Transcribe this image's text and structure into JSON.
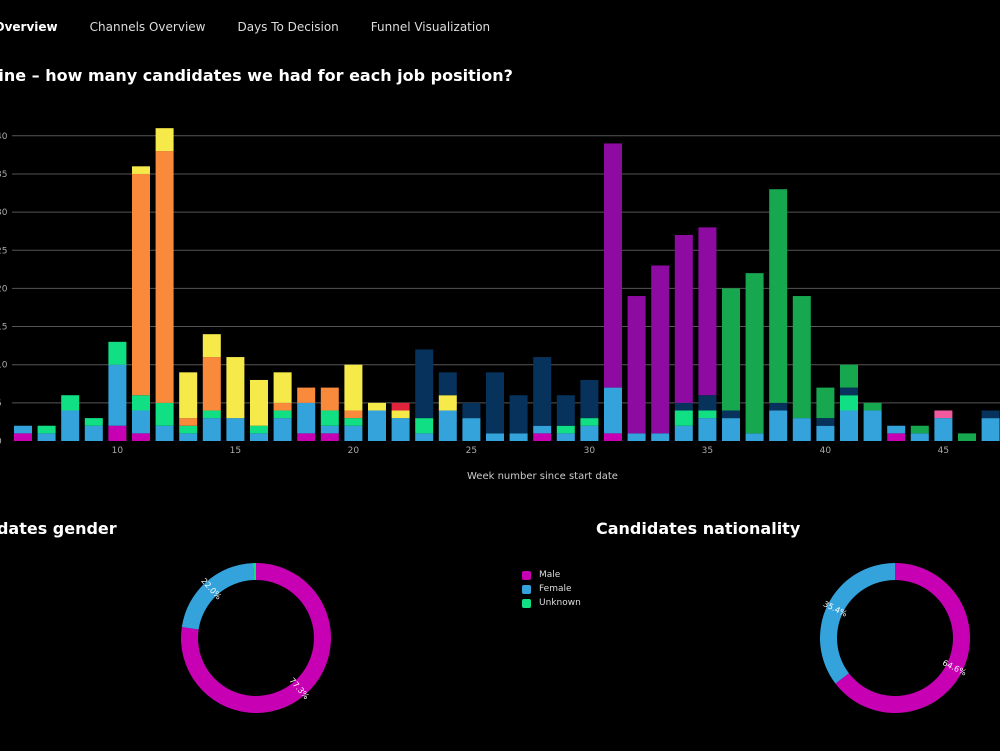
{
  "tabs": [
    {
      "label": "al Overview",
      "active": true
    },
    {
      "label": "Channels Overview",
      "active": false
    },
    {
      "label": "Days To Decision",
      "active": false
    },
    {
      "label": "Funnel Visualization",
      "active": false
    }
  ],
  "titles": {
    "main": "eline – how many candidates we had for each job position?",
    "gender": "didates gender",
    "nationality": "Candidates nationality"
  },
  "colors": {
    "magenta": "#c800b4",
    "blue": "#34a3dc",
    "teal": "#11df83",
    "orange": "#f98a3c",
    "yellow": "#f6ea4b",
    "navy": "#06325c",
    "purple": "#8e0ba2",
    "green": "#17a74e",
    "pink": "#f05ba0",
    "red": "#e0243c"
  },
  "legend": [
    {
      "label": "Male",
      "color": "#c800b4"
    },
    {
      "label": "Female",
      "color": "#34a3dc"
    },
    {
      "label": "Unknown",
      "color": "#11df83"
    }
  ],
  "chart_data": [
    {
      "type": "bar",
      "stacked": true,
      "title": "eline – how many candidates we had for each job position?",
      "xlabel": "Week number since start date",
      "ylabel": "",
      "ylim": [
        0,
        40
      ],
      "y_ticks": [
        0,
        5,
        10,
        15,
        20,
        25,
        30,
        35,
        40
      ],
      "y_tick_labels": [
        "0",
        "5",
        "10",
        "15",
        "20",
        "25",
        "30",
        "35",
        "40"
      ],
      "x_ticks": [
        10,
        15,
        20,
        25,
        30,
        35,
        40,
        45
      ],
      "x_tick_labels": [
        "10",
        "15",
        "20",
        "25",
        "30",
        "35",
        "40",
        "45"
      ],
      "grid": true,
      "bars": [
        {
          "x": 6,
          "segments": [
            {
              "color": "magenta",
              "value": 1
            },
            {
              "color": "blue",
              "value": 1
            }
          ]
        },
        {
          "x": 7,
          "segments": [
            {
              "color": "blue",
              "value": 1
            },
            {
              "color": "teal",
              "value": 1
            }
          ]
        },
        {
          "x": 8,
          "segments": [
            {
              "color": "blue",
              "value": 4
            },
            {
              "color": "teal",
              "value": 2
            }
          ]
        },
        {
          "x": 9,
          "segments": [
            {
              "color": "blue",
              "value": 2
            },
            {
              "color": "teal",
              "value": 1
            }
          ]
        },
        {
          "x": 10,
          "segments": [
            {
              "color": "magenta",
              "value": 2
            },
            {
              "color": "blue",
              "value": 8
            },
            {
              "color": "teal",
              "value": 3
            }
          ]
        },
        {
          "x": 11,
          "segments": [
            {
              "color": "magenta",
              "value": 1
            },
            {
              "color": "blue",
              "value": 3
            },
            {
              "color": "teal",
              "value": 2
            },
            {
              "color": "orange",
              "value": 29
            },
            {
              "color": "yellow",
              "value": 1
            }
          ]
        },
        {
          "x": 12,
          "segments": [
            {
              "color": "blue",
              "value": 2
            },
            {
              "color": "teal",
              "value": 3
            },
            {
              "color": "orange",
              "value": 33
            },
            {
              "color": "yellow",
              "value": 3
            }
          ]
        },
        {
          "x": 13,
          "segments": [
            {
              "color": "blue",
              "value": 1
            },
            {
              "color": "teal",
              "value": 1
            },
            {
              "color": "orange",
              "value": 1
            },
            {
              "color": "yellow",
              "value": 6
            }
          ]
        },
        {
          "x": 14,
          "segments": [
            {
              "color": "blue",
              "value": 3
            },
            {
              "color": "teal",
              "value": 1
            },
            {
              "color": "orange",
              "value": 7
            },
            {
              "color": "yellow",
              "value": 3
            }
          ]
        },
        {
          "x": 15,
          "segments": [
            {
              "color": "blue",
              "value": 3
            },
            {
              "color": "yellow",
              "value": 8
            }
          ]
        },
        {
          "x": 16,
          "segments": [
            {
              "color": "blue",
              "value": 1
            },
            {
              "color": "teal",
              "value": 1
            },
            {
              "color": "yellow",
              "value": 6
            }
          ]
        },
        {
          "x": 17,
          "segments": [
            {
              "color": "blue",
              "value": 3
            },
            {
              "color": "teal",
              "value": 1
            },
            {
              "color": "orange",
              "value": 1
            },
            {
              "color": "yellow",
              "value": 4
            }
          ]
        },
        {
          "x": 18,
          "segments": [
            {
              "color": "magenta",
              "value": 1
            },
            {
              "color": "blue",
              "value": 4
            },
            {
              "color": "orange",
              "value": 2
            }
          ]
        },
        {
          "x": 19,
          "segments": [
            {
              "color": "magenta",
              "value": 1
            },
            {
              "color": "blue",
              "value": 1
            },
            {
              "color": "teal",
              "value": 2
            },
            {
              "color": "orange",
              "value": 3
            }
          ]
        },
        {
          "x": 20,
          "segments": [
            {
              "color": "blue",
              "value": 2
            },
            {
              "color": "teal",
              "value": 1
            },
            {
              "color": "orange",
              "value": 1
            },
            {
              "color": "yellow",
              "value": 6
            }
          ]
        },
        {
          "x": 21,
          "segments": [
            {
              "color": "blue",
              "value": 4
            },
            {
              "color": "yellow",
              "value": 1
            }
          ]
        },
        {
          "x": 22,
          "segments": [
            {
              "color": "blue",
              "value": 3
            },
            {
              "color": "yellow",
              "value": 1
            },
            {
              "color": "red",
              "value": 1
            }
          ]
        },
        {
          "x": 23,
          "segments": [
            {
              "color": "blue",
              "value": 1
            },
            {
              "color": "teal",
              "value": 2
            },
            {
              "color": "navy",
              "value": 9
            }
          ]
        },
        {
          "x": 24,
          "segments": [
            {
              "color": "blue",
              "value": 4
            },
            {
              "color": "yellow",
              "value": 2
            },
            {
              "color": "navy",
              "value": 3
            }
          ]
        },
        {
          "x": 25,
          "segments": [
            {
              "color": "blue",
              "value": 3
            },
            {
              "color": "navy",
              "value": 2
            }
          ]
        },
        {
          "x": 26,
          "segments": [
            {
              "color": "blue",
              "value": 1
            },
            {
              "color": "navy",
              "value": 8
            }
          ]
        },
        {
          "x": 27,
          "segments": [
            {
              "color": "blue",
              "value": 1
            },
            {
              "color": "navy",
              "value": 5
            }
          ]
        },
        {
          "x": 28,
          "segments": [
            {
              "color": "magenta",
              "value": 1
            },
            {
              "color": "blue",
              "value": 1
            },
            {
              "color": "navy",
              "value": 9
            }
          ]
        },
        {
          "x": 29,
          "segments": [
            {
              "color": "blue",
              "value": 1
            },
            {
              "color": "teal",
              "value": 1
            },
            {
              "color": "navy",
              "value": 4
            }
          ]
        },
        {
          "x": 30,
          "segments": [
            {
              "color": "blue",
              "value": 2
            },
            {
              "color": "teal",
              "value": 1
            },
            {
              "color": "navy",
              "value": 5
            }
          ]
        },
        {
          "x": 31,
          "segments": [
            {
              "color": "magenta",
              "value": 1
            },
            {
              "color": "blue",
              "value": 6
            },
            {
              "color": "purple",
              "value": 32
            }
          ]
        },
        {
          "x": 32,
          "segments": [
            {
              "color": "blue",
              "value": 1
            },
            {
              "color": "purple",
              "value": 18
            }
          ]
        },
        {
          "x": 33,
          "segments": [
            {
              "color": "blue",
              "value": 1
            },
            {
              "color": "purple",
              "value": 22
            }
          ]
        },
        {
          "x": 34,
          "segments": [
            {
              "color": "blue",
              "value": 2
            },
            {
              "color": "teal",
              "value": 2
            },
            {
              "color": "navy",
              "value": 1
            },
            {
              "color": "purple",
              "value": 22
            }
          ]
        },
        {
          "x": 35,
          "segments": [
            {
              "color": "blue",
              "value": 3
            },
            {
              "color": "teal",
              "value": 1
            },
            {
              "color": "navy",
              "value": 2
            },
            {
              "color": "purple",
              "value": 22
            }
          ]
        },
        {
          "x": 36,
          "segments": [
            {
              "color": "blue",
              "value": 3
            },
            {
              "color": "navy",
              "value": 1
            },
            {
              "color": "green",
              "value": 16
            }
          ]
        },
        {
          "x": 37,
          "segments": [
            {
              "color": "blue",
              "value": 1
            },
            {
              "color": "green",
              "value": 21
            }
          ]
        },
        {
          "x": 38,
          "segments": [
            {
              "color": "blue",
              "value": 4
            },
            {
              "color": "navy",
              "value": 1
            },
            {
              "color": "green",
              "value": 28
            }
          ]
        },
        {
          "x": 39,
          "segments": [
            {
              "color": "blue",
              "value": 3
            },
            {
              "color": "green",
              "value": 16
            }
          ]
        },
        {
          "x": 40,
          "segments": [
            {
              "color": "blue",
              "value": 2
            },
            {
              "color": "navy",
              "value": 1
            },
            {
              "color": "green",
              "value": 4
            }
          ]
        },
        {
          "x": 41,
          "segments": [
            {
              "color": "blue",
              "value": 4
            },
            {
              "color": "teal",
              "value": 2
            },
            {
              "color": "navy",
              "value": 1
            },
            {
              "color": "green",
              "value": 3
            }
          ]
        },
        {
          "x": 42,
          "segments": [
            {
              "color": "blue",
              "value": 4
            },
            {
              "color": "green",
              "value": 1
            }
          ]
        },
        {
          "x": 43,
          "segments": [
            {
              "color": "magenta",
              "value": 1
            },
            {
              "color": "blue",
              "value": 1
            }
          ]
        },
        {
          "x": 44,
          "segments": [
            {
              "color": "blue",
              "value": 1
            },
            {
              "color": "green",
              "value": 1
            }
          ]
        },
        {
          "x": 45,
          "segments": [
            {
              "color": "blue",
              "value": 3
            },
            {
              "color": "pink",
              "value": 1
            }
          ]
        },
        {
          "x": 46,
          "segments": [
            {
              "color": "green",
              "value": 1
            }
          ]
        },
        {
          "x": 47,
          "segments": [
            {
              "color": "blue",
              "value": 3
            },
            {
              "color": "navy",
              "value": 1
            }
          ]
        }
      ]
    },
    {
      "type": "pie",
      "donut": true,
      "title": "didates gender",
      "slices": [
        {
          "label": "Male",
          "value": 77.3,
          "display": "77.3%",
          "color": "#c800b4"
        },
        {
          "label": "Female",
          "value": 22.0,
          "display": "22.0%",
          "color": "#34a3dc"
        },
        {
          "label": "Unknown",
          "value": 0.66,
          "display": "0.66%",
          "color": "#11df83"
        }
      ],
      "legend": [
        "Male",
        "Female",
        "Unknown"
      ]
    },
    {
      "type": "pie",
      "donut": true,
      "title": "Candidates nationality",
      "slices": [
        {
          "label": "",
          "value": 64.6,
          "display": "64.6%",
          "color": "#c800b4"
        },
        {
          "label": "",
          "value": 35.4,
          "display": "35.4%",
          "color": "#34a3dc"
        }
      ]
    }
  ]
}
